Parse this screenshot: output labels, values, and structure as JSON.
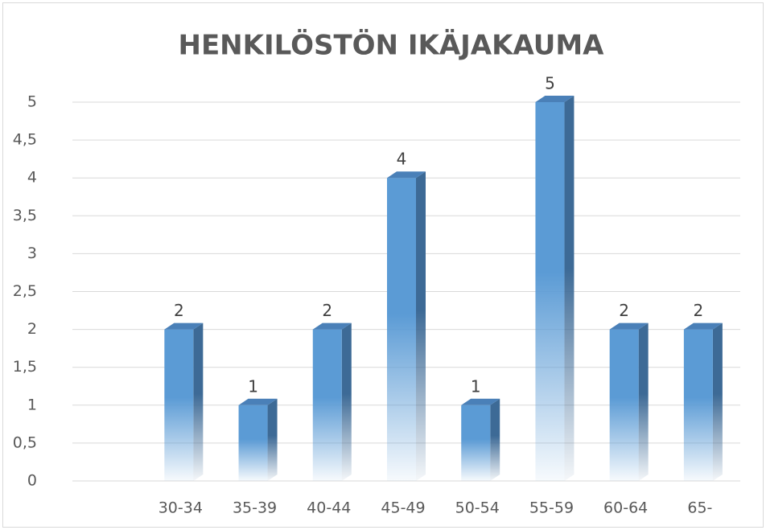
{
  "chart_data": {
    "type": "bar",
    "title": "HENKILÖSTÖN IKÄJAKAUMA",
    "categories": [
      null,
      "30-34",
      "35-39",
      "40-44",
      "45-49",
      "50-54",
      "55-59",
      "60-64",
      "65-"
    ],
    "values": [
      null,
      2,
      1,
      2,
      4,
      1,
      5,
      2,
      2
    ],
    "color": "#5b9bd5",
    "ylim": [
      0,
      5
    ],
    "yticks": [
      0,
      {
        "value": 0.5,
        "label": "0,5"
      },
      1,
      {
        "value": 1.5,
        "label": "1,5"
      },
      2,
      {
        "value": 2.5,
        "label": "2,5"
      },
      3,
      {
        "value": 3.5,
        "label": "3,5"
      },
      4,
      {
        "value": 4.5,
        "label": "4,5"
      },
      5
    ],
    "grid": true
  }
}
